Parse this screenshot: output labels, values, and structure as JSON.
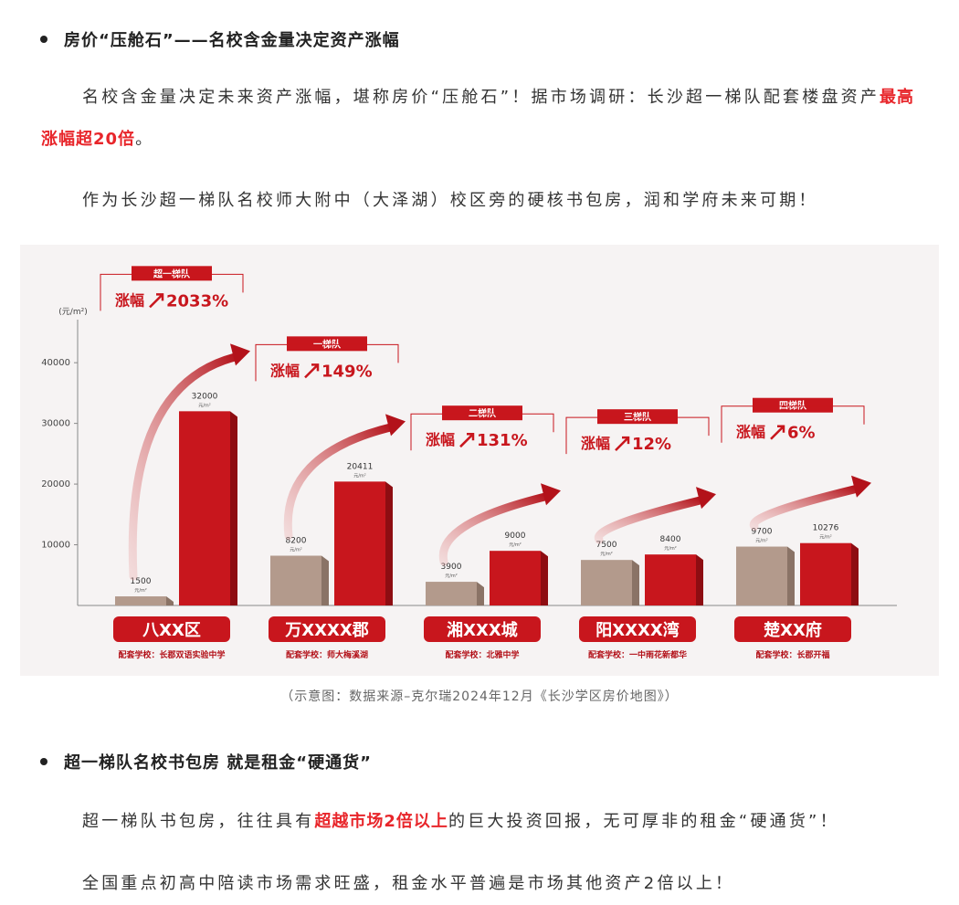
{
  "section1": {
    "heading": "房价“压舱石”——名校含金量决定资产涨幅",
    "paragraphs": [
      [
        {
          "text": "名校含金量决定未来资产涨幅，堪称房价“压舱石”！据市场调研：长沙超一梯队配套楼盘资产"
        },
        {
          "text": "最高涨幅超20倍",
          "highlight": true
        },
        {
          "text": "。"
        }
      ],
      [
        {
          "text": "作为长沙超一梯队名校师大附中（大泽湖）校区旁的硬核书包房，润和学府未来可期！"
        }
      ]
    ]
  },
  "figure": {
    "chart_data": {
      "type": "bar",
      "y_unit": "(元/m²)",
      "bar_unit": "元/m²",
      "categories": [
        "八XX区",
        "万XXXX郡",
        "湘XXX城",
        "阳XXXX湾",
        "楚XX府"
      ],
      "schools": [
        "配套学校：长郡双语实验中学",
        "配套学校：师大梅溪湖",
        "配套学校：北雅中学",
        "配套学校：一中雨花新都华",
        "配套学校：长郡开福"
      ],
      "tiers": [
        "超一梯队",
        "一梯队",
        "二梯队",
        "三梯队",
        "四梯队"
      ],
      "growth_label": "涨幅",
      "growth": {
        "values": [
          2033,
          149,
          131,
          12,
          6
        ],
        "value_labels": [
          "2033%",
          "149%",
          "131%",
          "12%",
          "6%"
        ]
      },
      "series": [
        {
          "color": "#b39a8c",
          "values": [
            1500,
            8200,
            3900,
            7500,
            9700
          ]
        },
        {
          "color": "#c8161d",
          "values": [
            32000,
            20411,
            9000,
            8400,
            10276
          ]
        }
      ],
      "ylim": [
        0,
        48000
      ],
      "yticks": [
        10000,
        20000,
        30000,
        40000
      ]
    },
    "caption": "（示意图：数据来源–克尔瑞2024年12月《长沙学区房价地图》）"
  },
  "section2": {
    "heading": "超一梯队名校书包房 就是租金“硬通货”",
    "paragraphs": [
      [
        {
          "text": "超一梯队书包房，往往具有"
        },
        {
          "text": "超越市场2倍以上",
          "highlight": true
        },
        {
          "text": "的巨大投资回报，无可厚非的租金“硬通货”！"
        }
      ],
      [
        {
          "text": "全国重点初高中陪读市场需求旺盛，租金水平普遍是市场其他资产2倍以上！"
        }
      ]
    ]
  }
}
